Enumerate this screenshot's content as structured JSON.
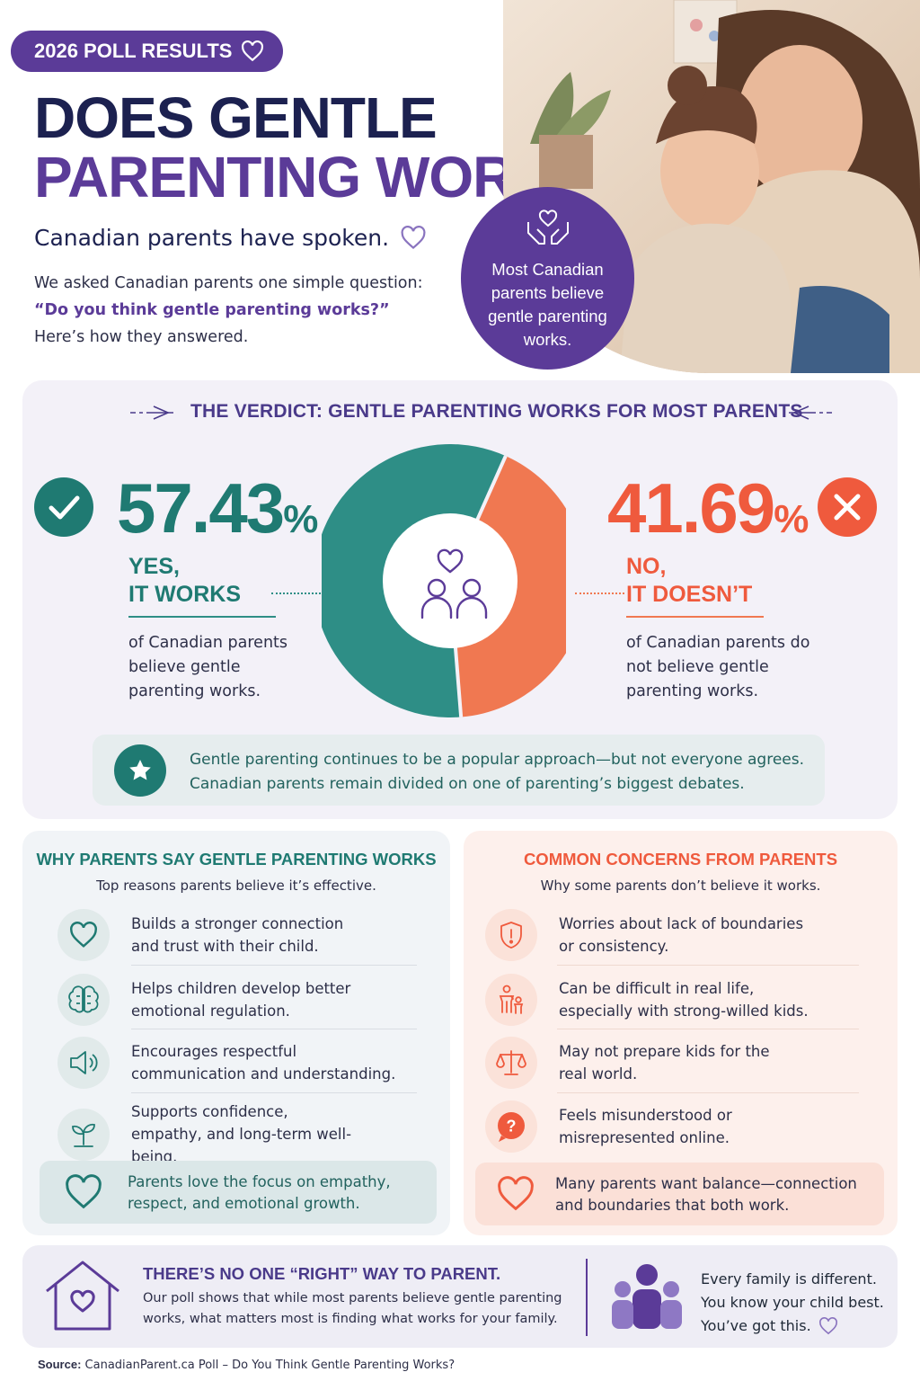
{
  "header": {
    "badge": "2026 POLL RESULTS",
    "title_line1": "DOES GENTLE",
    "title_line2": "PARENTING WORK?",
    "tagline": "Canadian parents have spoken.",
    "intro_part1": "We asked Canadian parents one simple question:",
    "intro_question": "“Do you think gentle parenting works?”",
    "intro_part2": " Here’s how they answered.",
    "bubble_text": "Most Canadian parents believe gentle parenting works."
  },
  "verdict": {
    "heading": "THE VERDICT: GENTLE PARENTING WORKS FOR MOST PARENTS",
    "yes": {
      "value_text": "57.43",
      "label_line1": "YES,",
      "label_line2": "IT WORKS",
      "description": "of Canadian parents believe gentle parenting works."
    },
    "no": {
      "value_text": "41.69",
      "label_line1": "NO,",
      "label_line2": "IT DOESN’T",
      "description": "of Canadian parents do not believe gentle parenting works."
    },
    "percent_sign": "%",
    "note": "Gentle parenting continues to be a popular approach—but not everyone agrees. Canadian parents remain divided on one of parenting’s biggest debates."
  },
  "chart_data": {
    "type": "pie",
    "donut": true,
    "categories": [
      "YES, IT WORKS",
      "NO, IT DOESN’T"
    ],
    "values": [
      57.43,
      41.69
    ],
    "unit": "%",
    "colors": [
      "#2e8e86",
      "#f07851"
    ],
    "title": "",
    "legend": "none"
  },
  "why": {
    "title": "WHY PARENTS SAY GENTLE PARENTING WORKS",
    "subtitle": "Top reasons parents believe it’s effective.",
    "items": [
      {
        "text": "Builds a stronger connection and trust with their child.",
        "icon": "heart-icon"
      },
      {
        "text": "Helps children develop better emotional regulation.",
        "icon": "brain-icon"
      },
      {
        "text": "Encourages respectful communication and understanding.",
        "icon": "speaker-icon"
      },
      {
        "text": "Supports confidence, empathy, and long-term well-being.",
        "icon": "sprout-icon"
      }
    ],
    "callout": "Parents love the focus on empathy, respect, and emotional growth."
  },
  "concerns": {
    "title": "COMMON CONCERNS FROM PARENTS",
    "subtitle": "Why some parents don’t believe it works.",
    "items": [
      {
        "text": "Worries about lack of boundaries or consistency.",
        "icon": "shield-alert-icon"
      },
      {
        "text": "Can be difficult in real life, especially with strong-willed kids.",
        "icon": "parent-child-icon"
      },
      {
        "text": "May not prepare kids for the real world.",
        "icon": "scales-icon"
      },
      {
        "text": "Feels misunderstood or misrepresented online.",
        "icon": "question-bubble-icon"
      }
    ],
    "callout": "Many parents want balance—connection and boundaries that both work."
  },
  "footer": {
    "title": "THERE’S NO ONE “RIGHT” WAY TO PARENT.",
    "text": "Our poll shows that while most parents believe gentle parenting works, what matters most is finding what works for your family.",
    "right_line1": "Every family is different.",
    "right_line2": "You know your child best.",
    "right_line3": "You’ve got this.",
    "source_label": "Source:",
    "source_text": " CanadianParent.ca Poll – Do You Think Gentle Parenting Works?"
  },
  "colors": {
    "purple": "#5b3b98",
    "navy": "#1c2150",
    "teal": "#2e8e86",
    "coral": "#f07851"
  }
}
